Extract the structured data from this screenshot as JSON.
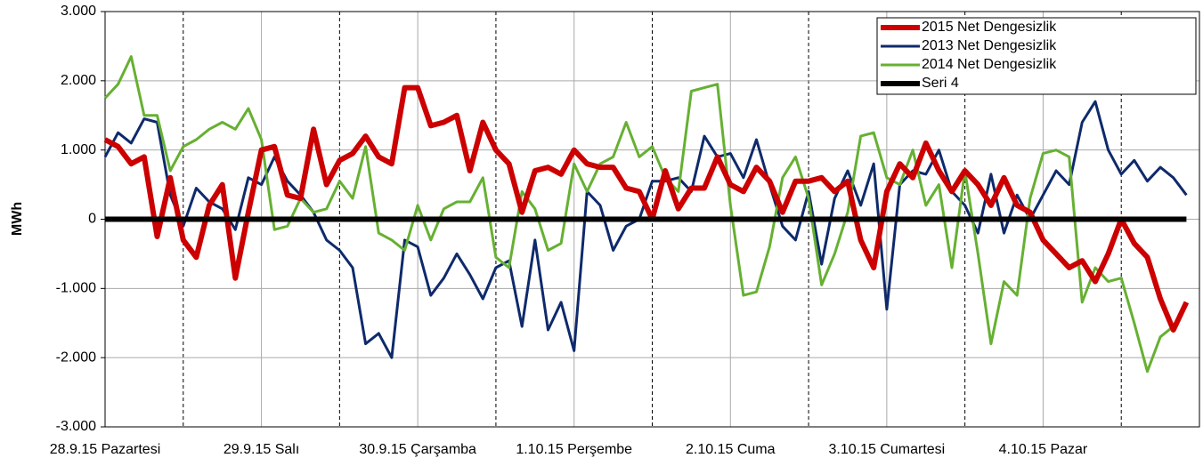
{
  "chart_data": {
    "type": "line",
    "ylabel": "MWh",
    "categories": [
      "28.9.15 Pazartesi",
      null,
      null,
      null,
      null,
      null,
      null,
      null,
      null,
      null,
      null,
      null,
      "29.9.15 Salı",
      null,
      null,
      null,
      null,
      null,
      null,
      null,
      null,
      null,
      null,
      null,
      "30.9.15 Çarşamba",
      null,
      null,
      null,
      null,
      null,
      null,
      null,
      null,
      null,
      null,
      null,
      "1.10.15 Perşembe",
      null,
      null,
      null,
      null,
      null,
      null,
      null,
      null,
      null,
      null,
      null,
      "2.10.15 Cuma",
      null,
      null,
      null,
      null,
      null,
      null,
      null,
      null,
      null,
      null,
      null,
      "3.10.15 Cumartesi",
      null,
      null,
      null,
      null,
      null,
      null,
      null,
      null,
      null,
      null,
      null,
      "4.10.15 Pazar",
      null,
      null,
      null,
      null,
      null,
      null,
      null,
      null,
      null,
      null,
      null
    ],
    "series": [
      {
        "name": "2015  Net Dengesizlik",
        "color": "#cc0000",
        "width": 6,
        "values": [
          1150,
          1050,
          800,
          900,
          -250,
          600,
          -300,
          -550,
          200,
          500,
          -850,
          100,
          1000,
          1050,
          350,
          300,
          1300,
          500,
          850,
          950,
          1200,
          900,
          800,
          1900,
          1900,
          1350,
          1400,
          1500,
          700,
          1400,
          1000,
          800,
          100,
          700,
          750,
          650,
          1000,
          800,
          750,
          750,
          450,
          400,
          0,
          700,
          150,
          450,
          450,
          900,
          500,
          400,
          750,
          550,
          100,
          550,
          550,
          600,
          400,
          550,
          -300,
          -700,
          400,
          800,
          600,
          1100,
          700,
          400,
          700,
          500,
          200,
          600,
          200,
          100,
          -300,
          -500,
          -700,
          -600,
          -900,
          -500,
          0,
          -350,
          -550,
          -1150,
          -1600,
          -1200
        ]
      },
      {
        "name": "2013  Net Dengesizlik",
        "color": "#0e2a6b",
        "width": 3,
        "values": [
          900,
          1250,
          1100,
          1450,
          1400,
          350,
          -100,
          450,
          250,
          150,
          -150,
          600,
          500,
          900,
          550,
          350,
          100,
          -300,
          -450,
          -700,
          -1800,
          -1650,
          -2000,
          -300,
          -400,
          -1100,
          -850,
          -500,
          -800,
          -1150,
          -700,
          -600,
          -1550,
          -300,
          -1600,
          -1200,
          -1900,
          400,
          200,
          -450,
          -100,
          0,
          550,
          550,
          600,
          400,
          1200,
          900,
          950,
          600,
          1150,
          500,
          -100,
          -300,
          400,
          -650,
          300,
          700,
          200,
          800,
          -1300,
          500,
          700,
          650,
          1000,
          400,
          200,
          -200,
          650,
          -200,
          350,
          0,
          350,
          700,
          500,
          1400,
          1700,
          1000,
          650,
          850,
          550,
          750,
          600,
          350
        ]
      },
      {
        "name": "2014  Net Dengesizlik",
        "color": "#66b032",
        "width": 3,
        "values": [
          1750,
          1950,
          2350,
          1500,
          1500,
          700,
          1050,
          1150,
          1300,
          1400,
          1300,
          1600,
          1150,
          -150,
          -100,
          300,
          100,
          150,
          550,
          300,
          1050,
          -200,
          -300,
          -450,
          200,
          -300,
          150,
          250,
          250,
          600,
          -550,
          -700,
          400,
          150,
          -450,
          -350,
          800,
          400,
          800,
          900,
          1400,
          900,
          1050,
          600,
          400,
          1850,
          1900,
          1950,
          200,
          -1100,
          -1050,
          -400,
          600,
          900,
          300,
          -950,
          -500,
          100,
          1200,
          1250,
          600,
          500,
          1000,
          200,
          500,
          -700,
          700,
          -500,
          -1800,
          -900,
          -1100,
          300,
          950,
          1000,
          900,
          -1200,
          -700,
          -900,
          -850,
          -1500,
          -2200,
          -1700,
          -1550,
          -1200
        ]
      },
      {
        "name": "Seri 4",
        "color": "#000000",
        "width": 6,
        "values": [
          0,
          0,
          0,
          0,
          0,
          0,
          0,
          0,
          0,
          0,
          0,
          0,
          0,
          0,
          0,
          0,
          0,
          0,
          0,
          0,
          0,
          0,
          0,
          0,
          0,
          0,
          0,
          0,
          0,
          0,
          0,
          0,
          0,
          0,
          0,
          0,
          0,
          0,
          0,
          0,
          0,
          0,
          0,
          0,
          0,
          0,
          0,
          0,
          0,
          0,
          0,
          0,
          0,
          0,
          0,
          0,
          0,
          0,
          0,
          0,
          0,
          0,
          0,
          0,
          0,
          0,
          0,
          0,
          0,
          0,
          0,
          0,
          0,
          0,
          0,
          0,
          0,
          0,
          0,
          0,
          0,
          0,
          0,
          0
        ]
      }
    ],
    "ylim": [
      -3000,
      3000
    ],
    "yticks": [
      {
        "value": -3000,
        "label": "-3.000"
      },
      {
        "value": -2000,
        "label": "-2.000"
      },
      {
        "value": -1000,
        "label": "-1.000"
      },
      0,
      {
        "value": 1000,
        "label": "1.000"
      },
      {
        "value": 2000,
        "label": "2.000"
      },
      {
        "value": 3000,
        "label": "3.000"
      }
    ],
    "grid": true,
    "legend": "upper right"
  }
}
